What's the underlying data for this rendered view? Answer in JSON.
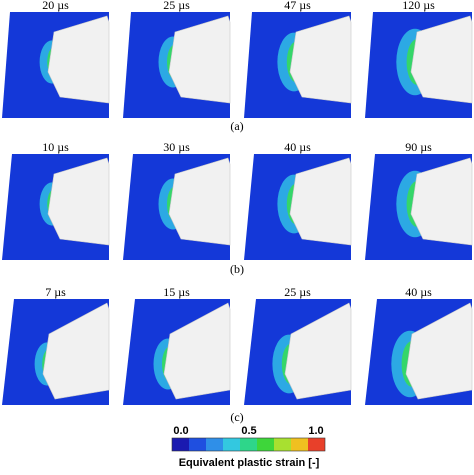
{
  "rows": [
    {
      "label": "(a)",
      "panels": [
        "20 µs",
        "25 µs",
        "47 µs",
        "120 µs"
      ]
    },
    {
      "label": "(b)",
      "panels": [
        "10 µs",
        "30 µs",
        "40 µs",
        "90 µs"
      ]
    },
    {
      "label": "(c)",
      "panels": [
        "7 µs",
        "15 µs",
        "25 µs",
        "40 µs"
      ]
    }
  ],
  "colorbar": {
    "ticks": [
      "0.0",
      "0.5",
      "1.0"
    ],
    "title": "Equivalent plastic strain [-]"
  }
}
